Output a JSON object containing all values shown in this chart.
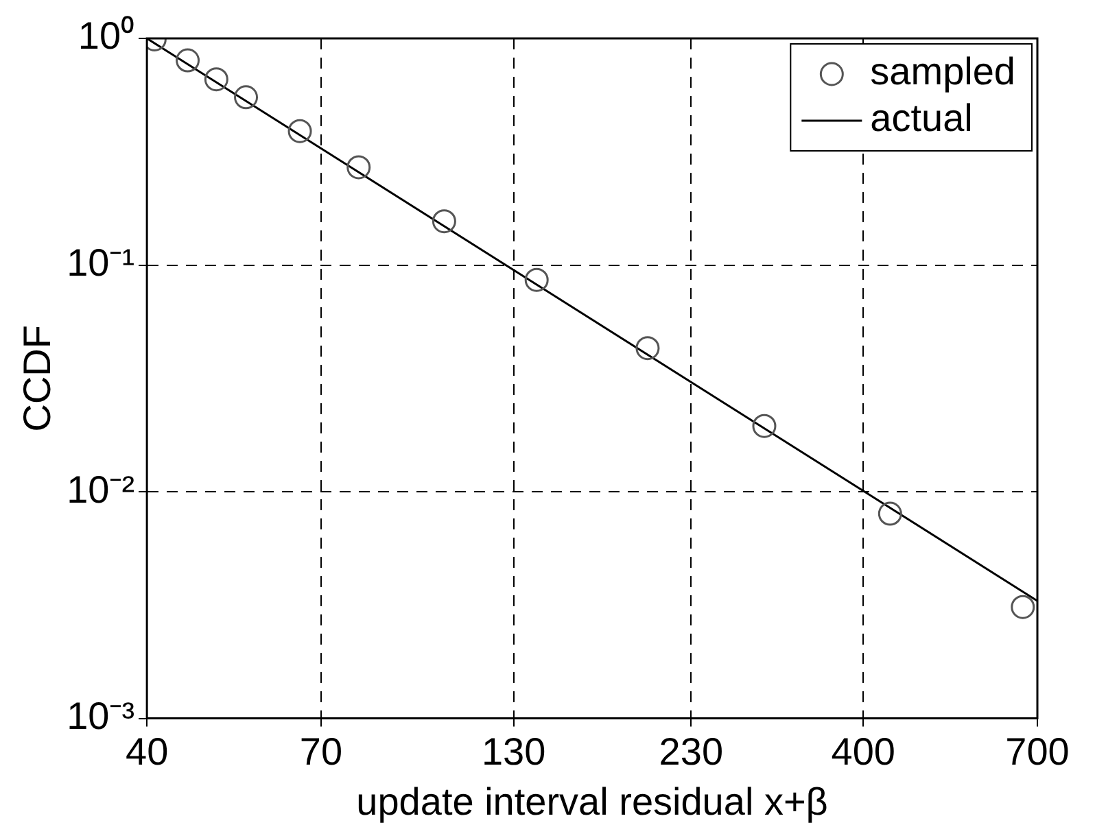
{
  "chart_data": {
    "type": "scatter",
    "xlabel": "update interval residual x+β",
    "ylabel": "CCDF",
    "log": "xy",
    "grid": true,
    "legend": "top right",
    "xlim": [
      40,
      700
    ],
    "xticks": [
      40,
      70,
      130,
      230,
      400,
      700
    ],
    "ylim": [
      0.001,
      1
    ],
    "yticks": [
      {
        "value": 0.001,
        "label": "10⁻³"
      },
      {
        "value": 0.01,
        "label": "10⁻²"
      },
      {
        "value": 0.1,
        "label": "10⁻¹"
      },
      {
        "value": 1,
        "label": "10⁰"
      }
    ],
    "series": [
      {
        "name": "sampled",
        "color": "#555555",
        "marker": "circle",
        "x": [
          41,
          45.6,
          50,
          55,
          65.4,
          79,
          104,
          140,
          200,
          291,
          436,
          668
        ],
        "values": [
          0.99,
          0.8,
          0.66,
          0.55,
          0.39,
          0.27,
          0.156,
          0.086,
          0.043,
          0.0195,
          0.008,
          0.0031
        ]
      },
      {
        "name": "actual",
        "type": "line",
        "color": "#000000",
        "marker": "none",
        "line_style": "solid",
        "x": [
          40,
          700
        ],
        "values": [
          1.0,
          0.0033
        ]
      }
    ]
  }
}
